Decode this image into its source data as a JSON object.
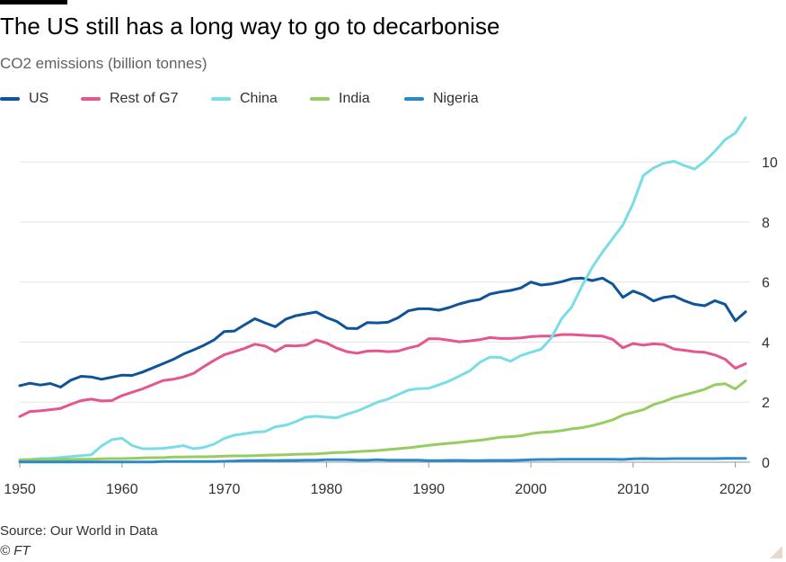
{
  "title": "The US still has a long way to go to decarbonise",
  "subtitle": "CO2 emissions (billion tonnes)",
  "source": "Source: Our World in Data",
  "copyright": "© FT",
  "chart_data": {
    "type": "line",
    "title": "The US still has a long way to go to decarbonise",
    "subtitle": "CO2 emissions (billion tonnes)",
    "xlabel": "",
    "ylabel": "CO2 emissions (billion tonnes)",
    "xlim": [
      1950,
      2021
    ],
    "ylim": [
      0,
      11.5
    ],
    "xticks": [
      1950,
      1960,
      1970,
      1980,
      1990,
      2000,
      2010,
      2020
    ],
    "yticks": [
      0,
      2,
      4,
      6,
      8,
      10
    ],
    "grid": true,
    "legend": "top-left",
    "x": [
      1950,
      1951,
      1952,
      1953,
      1954,
      1955,
      1956,
      1957,
      1958,
      1959,
      1960,
      1961,
      1962,
      1963,
      1964,
      1965,
      1966,
      1967,
      1968,
      1969,
      1970,
      1971,
      1972,
      1973,
      1974,
      1975,
      1976,
      1977,
      1978,
      1979,
      1980,
      1981,
      1982,
      1983,
      1984,
      1985,
      1986,
      1987,
      1988,
      1989,
      1990,
      1991,
      1992,
      1993,
      1994,
      1995,
      1996,
      1997,
      1998,
      1999,
      2000,
      2001,
      2002,
      2003,
      2004,
      2005,
      2006,
      2007,
      2008,
      2009,
      2010,
      2011,
      2012,
      2013,
      2014,
      2015,
      2016,
      2017,
      2018,
      2019,
      2020,
      2021
    ],
    "series": [
      {
        "name": "US",
        "color": "#0f5499",
        "values": [
          2.55,
          2.63,
          2.57,
          2.62,
          2.5,
          2.73,
          2.86,
          2.84,
          2.76,
          2.83,
          2.9,
          2.89,
          3.0,
          3.14,
          3.28,
          3.42,
          3.6,
          3.74,
          3.89,
          4.07,
          4.35,
          4.37,
          4.58,
          4.78,
          4.64,
          4.51,
          4.76,
          4.88,
          4.94,
          5.0,
          4.82,
          4.69,
          4.46,
          4.45,
          4.65,
          4.64,
          4.66,
          4.81,
          5.04,
          5.11,
          5.11,
          5.06,
          5.15,
          5.27,
          5.36,
          5.42,
          5.6,
          5.67,
          5.72,
          5.8,
          6.0,
          5.9,
          5.94,
          6.01,
          6.11,
          6.13,
          6.05,
          6.13,
          5.93,
          5.49,
          5.7,
          5.57,
          5.37,
          5.49,
          5.53,
          5.38,
          5.26,
          5.21,
          5.38,
          5.26,
          4.71,
          5.01
        ]
      },
      {
        "name": "Rest of G7",
        "color": "#e3568f",
        "values": [
          1.52,
          1.69,
          1.71,
          1.75,
          1.79,
          1.93,
          2.05,
          2.1,
          2.04,
          2.05,
          2.22,
          2.33,
          2.44,
          2.58,
          2.72,
          2.76,
          2.84,
          2.96,
          3.18,
          3.39,
          3.58,
          3.68,
          3.79,
          3.93,
          3.87,
          3.69,
          3.88,
          3.87,
          3.9,
          4.07,
          3.97,
          3.8,
          3.68,
          3.63,
          3.7,
          3.71,
          3.68,
          3.7,
          3.8,
          3.88,
          4.11,
          4.11,
          4.06,
          4.01,
          4.04,
          4.08,
          4.15,
          4.12,
          4.12,
          4.14,
          4.18,
          4.2,
          4.2,
          4.25,
          4.25,
          4.23,
          4.21,
          4.2,
          4.09,
          3.81,
          3.95,
          3.9,
          3.94,
          3.92,
          3.77,
          3.73,
          3.68,
          3.66,
          3.57,
          3.43,
          3.13,
          3.28
        ]
      },
      {
        "name": "China",
        "color": "#78dde5",
        "values": [
          0.08,
          0.09,
          0.12,
          0.13,
          0.16,
          0.19,
          0.22,
          0.25,
          0.54,
          0.75,
          0.8,
          0.55,
          0.45,
          0.45,
          0.46,
          0.5,
          0.55,
          0.45,
          0.49,
          0.6,
          0.79,
          0.9,
          0.95,
          1.0,
          1.02,
          1.18,
          1.23,
          1.35,
          1.5,
          1.53,
          1.5,
          1.48,
          1.6,
          1.7,
          1.85,
          2.0,
          2.1,
          2.25,
          2.4,
          2.45,
          2.46,
          2.58,
          2.7,
          2.87,
          3.04,
          3.32,
          3.5,
          3.49,
          3.36,
          3.55,
          3.66,
          3.76,
          4.14,
          4.78,
          5.17,
          5.87,
          6.49,
          7.0,
          7.45,
          7.9,
          8.62,
          9.55,
          9.8,
          9.96,
          10.02,
          9.88,
          9.76,
          10.02,
          10.36,
          10.74,
          10.96,
          11.47
        ]
      },
      {
        "name": "India",
        "color": "#96cc60",
        "values": [
          0.07,
          0.08,
          0.08,
          0.08,
          0.09,
          0.09,
          0.1,
          0.1,
          0.11,
          0.12,
          0.12,
          0.13,
          0.14,
          0.15,
          0.15,
          0.17,
          0.17,
          0.18,
          0.18,
          0.19,
          0.2,
          0.21,
          0.21,
          0.22,
          0.23,
          0.24,
          0.25,
          0.26,
          0.27,
          0.28,
          0.3,
          0.32,
          0.33,
          0.35,
          0.37,
          0.39,
          0.42,
          0.45,
          0.48,
          0.52,
          0.56,
          0.6,
          0.63,
          0.66,
          0.7,
          0.73,
          0.78,
          0.83,
          0.85,
          0.88,
          0.95,
          0.99,
          1.01,
          1.05,
          1.11,
          1.15,
          1.22,
          1.31,
          1.41,
          1.57,
          1.66,
          1.75,
          1.92,
          2.02,
          2.15,
          2.24,
          2.33,
          2.43,
          2.58,
          2.61,
          2.44,
          2.71
        ]
      },
      {
        "name": "Nigeria",
        "color": "#2b88c8",
        "values": [
          0.01,
          0.01,
          0.01,
          0.01,
          0.01,
          0.01,
          0.01,
          0.01,
          0.01,
          0.01,
          0.01,
          0.01,
          0.01,
          0.01,
          0.02,
          0.02,
          0.02,
          0.02,
          0.02,
          0.02,
          0.03,
          0.04,
          0.05,
          0.05,
          0.06,
          0.05,
          0.06,
          0.06,
          0.07,
          0.07,
          0.08,
          0.08,
          0.08,
          0.07,
          0.07,
          0.08,
          0.07,
          0.07,
          0.07,
          0.07,
          0.05,
          0.05,
          0.06,
          0.06,
          0.05,
          0.05,
          0.06,
          0.06,
          0.06,
          0.07,
          0.08,
          0.09,
          0.09,
          0.1,
          0.1,
          0.1,
          0.1,
          0.1,
          0.1,
          0.09,
          0.11,
          0.12,
          0.11,
          0.11,
          0.12,
          0.12,
          0.12,
          0.12,
          0.12,
          0.13,
          0.13,
          0.13
        ]
      }
    ]
  }
}
